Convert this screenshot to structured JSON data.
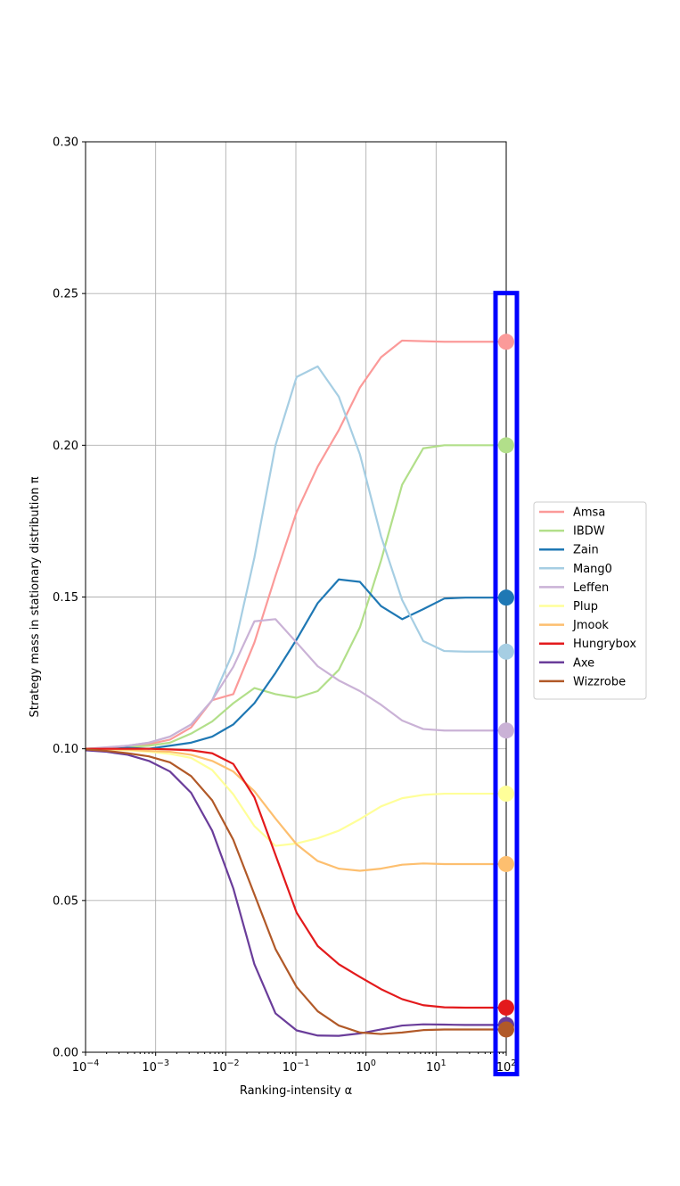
{
  "chart_data": {
    "type": "line",
    "title": "",
    "xlabel": "Ranking-intensity α",
    "ylabel": "Strategy mass in stationary distribution π",
    "x_scale": "log",
    "xlim": [
      0.0001,
      100
    ],
    "ylim": [
      0.0,
      0.3
    ],
    "grid": true,
    "legend_placement": "right",
    "x_ticks": [
      {
        "value": 0.0001,
        "base": "10",
        "exp": "−4"
      },
      {
        "value": 0.001,
        "base": "10",
        "exp": "−3"
      },
      {
        "value": 0.01,
        "base": "10",
        "exp": "−2"
      },
      {
        "value": 0.1,
        "base": "10",
        "exp": "−1"
      },
      {
        "value": 1,
        "base": "10",
        "exp": "0"
      },
      {
        "value": 10,
        "base": "10",
        "exp": "1"
      },
      {
        "value": 100,
        "base": "10",
        "exp": "2"
      }
    ],
    "y_ticks": [
      {
        "value": 0.0,
        "label": "0.00"
      },
      {
        "value": 0.05,
        "label": "0.05"
      },
      {
        "value": 0.1,
        "label": "0.10"
      },
      {
        "value": 0.15,
        "label": "0.15"
      },
      {
        "value": 0.2,
        "label": "0.20"
      },
      {
        "value": 0.25,
        "label": "0.25"
      },
      {
        "value": 0.3,
        "label": "0.30"
      }
    ],
    "x": [
      0.0001,
      0.0002,
      0.0004,
      0.0008,
      0.0016,
      0.0032,
      0.0064,
      0.0128,
      0.0256,
      0.0512,
      0.1024,
      0.2048,
      0.4096,
      0.8192,
      1.6384,
      3.2768,
      6.5536,
      13.1072,
      26.2144,
      52.4288,
      100
    ],
    "series": [
      {
        "name": "Amsa",
        "color": "#fb9a99",
        "values": [
          0.1,
          0.1003,
          0.1008,
          0.1015,
          0.103,
          0.107,
          0.116,
          0.118,
          0.135,
          0.157,
          0.178,
          0.193,
          0.205,
          0.219,
          0.229,
          0.2345,
          0.2343,
          0.2341,
          0.2341,
          0.2341,
          0.2341
        ]
      },
      {
        "name": "IBDW",
        "color": "#b2df8a",
        "values": [
          0.1,
          0.1002,
          0.1005,
          0.101,
          0.102,
          0.105,
          0.109,
          0.115,
          0.12,
          0.118,
          0.1168,
          0.119,
          0.126,
          0.14,
          0.162,
          0.187,
          0.199,
          0.2,
          0.2,
          0.2,
          0.2
        ]
      },
      {
        "name": "Zain",
        "color": "#1f78b4",
        "values": [
          0.1,
          0.1001,
          0.1003,
          0.1,
          0.101,
          0.102,
          0.104,
          0.108,
          0.115,
          0.125,
          0.136,
          0.148,
          0.1558,
          0.155,
          0.147,
          0.1427,
          0.146,
          0.1495,
          0.1498,
          0.1498,
          0.1498
        ]
      },
      {
        "name": "Mang0",
        "color": "#a6cee3",
        "values": [
          0.1,
          0.1004,
          0.101,
          0.102,
          0.104,
          0.108,
          0.116,
          0.132,
          0.163,
          0.2,
          0.2225,
          0.226,
          0.216,
          0.197,
          0.17,
          0.149,
          0.1355,
          0.1322,
          0.132,
          0.132,
          0.132
        ]
      },
      {
        "name": "Leffen",
        "color": "#cab2d6",
        "values": [
          0.1,
          0.1005,
          0.101,
          0.102,
          0.104,
          0.108,
          0.116,
          0.127,
          0.142,
          0.1427,
          0.135,
          0.1272,
          0.1225,
          0.119,
          0.1145,
          0.1093,
          0.1065,
          0.106,
          0.106,
          0.106,
          0.106
        ]
      },
      {
        "name": "Plup",
        "color": "#ffff99",
        "values": [
          0.1,
          0.0998,
          0.0995,
          0.099,
          0.0983,
          0.097,
          0.093,
          0.085,
          0.0745,
          0.068,
          0.0688,
          0.0705,
          0.073,
          0.0768,
          0.081,
          0.0837,
          0.0848,
          0.0852,
          0.0852,
          0.0852,
          0.0852
        ]
      },
      {
        "name": "Jmook",
        "color": "#fdbf6f",
        "values": [
          0.1,
          0.0999,
          0.0997,
          0.0993,
          0.099,
          0.098,
          0.096,
          0.0925,
          0.086,
          0.077,
          0.0685,
          0.063,
          0.0605,
          0.0598,
          0.0605,
          0.0618,
          0.0622,
          0.062,
          0.062,
          0.062,
          0.062
        ]
      },
      {
        "name": "Hungrybox",
        "color": "#e31a1c",
        "values": [
          0.1,
          0.1,
          0.1,
          0.1,
          0.0998,
          0.0995,
          0.0985,
          0.095,
          0.084,
          0.065,
          0.046,
          0.035,
          0.029,
          0.0248,
          0.0208,
          0.0175,
          0.0155,
          0.0148,
          0.0147,
          0.0147,
          0.0147
        ]
      },
      {
        "name": "Axe",
        "color": "#6a3d9a",
        "values": [
          0.0995,
          0.099,
          0.098,
          0.096,
          0.0925,
          0.0855,
          0.073,
          0.054,
          0.029,
          0.0128,
          0.0072,
          0.0055,
          0.0054,
          0.0062,
          0.0075,
          0.0088,
          0.0092,
          0.0091,
          0.009,
          0.009,
          0.009
        ]
      },
      {
        "name": "Wizzrobe",
        "color": "#b15928",
        "values": [
          0.0998,
          0.0993,
          0.0985,
          0.0975,
          0.0955,
          0.091,
          0.083,
          0.07,
          0.052,
          0.034,
          0.0215,
          0.0135,
          0.0088,
          0.0065,
          0.006,
          0.0065,
          0.0073,
          0.0075,
          0.0075,
          0.0075,
          0.0075
        ]
      }
    ]
  },
  "highlight": {
    "color": "#0000ff"
  }
}
